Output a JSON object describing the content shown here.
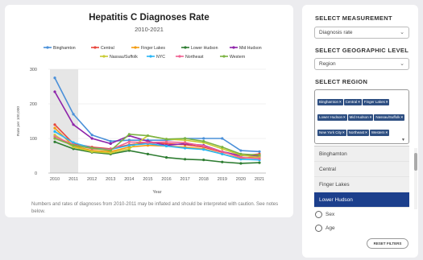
{
  "chart": {
    "title": "Hepatitis C Diagnoses Rate",
    "subtitle": "2010-2021",
    "note": "Numbers and rates of diagnoses from 2010-2011 may be inflated and should be interpreted with caution. See notes below."
  },
  "panel": {
    "measurement_title": "SELECT MEASUREMENT",
    "measurement_value": "Diagnosis rate",
    "geo_title": "SELECT GEOGRAPHIC LEVEL",
    "geo_value": "Region",
    "region_title": "SELECT REGION",
    "selected_regions": [
      "Binghamton",
      "Central",
      "Finger Lakes",
      "Lower Hudson",
      "Mid Hudson",
      "Nassau/Suffolk",
      "New York City",
      "Northeast",
      "Western"
    ],
    "dropdown_options": [
      "Binghamton",
      "Central",
      "Finger Lakes",
      "Lower Hudson"
    ],
    "dropdown_selected": "Lower Hudson",
    "radio_sex": "Sex",
    "radio_age": "Age",
    "reset_label": "RESET FILTERS"
  },
  "icons": {
    "chevron": "chevron-down-icon",
    "remove": "close-icon",
    "radio": "radio-icon"
  },
  "colors": {
    "highlight": "#1c3f8c",
    "tag": "#2e4f82",
    "shade": "#e6e6e6"
  },
  "chart_data": {
    "type": "line",
    "title": "Hepatitis C Diagnoses Rate",
    "subtitle": "2010-2021",
    "xlabel": "Year",
    "ylabel": "Rate per 100,000",
    "ylim": [
      0,
      300
    ],
    "yticks": [
      0,
      100,
      200,
      300
    ],
    "grid": true,
    "legend_position": "top",
    "shaded_range": [
      2010,
      2011
    ],
    "x": [
      2010,
      2011,
      2012,
      2013,
      2014,
      2015,
      2016,
      2017,
      2018,
      2019,
      2020,
      2021
    ],
    "series": [
      {
        "name": "Binghamton",
        "color": "#4a90d9",
        "values": [
          275,
          170,
          110,
          92,
          95,
          95,
          95,
          100,
          100,
          100,
          65,
          62
        ]
      },
      {
        "name": "Central",
        "color": "#e8463c",
        "values": [
          140,
          85,
          75,
          70,
          82,
          88,
          85,
          82,
          75,
          60,
          50,
          55
        ]
      },
      {
        "name": "Finger Lakes",
        "color": "#f39c12",
        "values": [
          130,
          78,
          65,
          62,
          75,
          80,
          78,
          75,
          70,
          55,
          42,
          48
        ]
      },
      {
        "name": "Lower Hudson",
        "color": "#2e7d32",
        "values": [
          90,
          70,
          60,
          55,
          65,
          55,
          45,
          40,
          38,
          32,
          28,
          30
        ]
      },
      {
        "name": "Mid Hudson",
        "color": "#8e24aa",
        "values": [
          235,
          140,
          100,
          85,
          108,
          92,
          80,
          85,
          80,
          62,
          50,
          50
        ]
      },
      {
        "name": "Nassau/Suffolk",
        "color": "#c9cc33",
        "values": [
          110,
          75,
          62,
          58,
          70,
          108,
          98,
          95,
          88,
          70,
          52,
          45
        ]
      },
      {
        "name": "NYC",
        "color": "#29b6f6",
        "values": [
          120,
          88,
          72,
          68,
          80,
          85,
          78,
          72,
          68,
          55,
          40,
          38
        ]
      },
      {
        "name": "Northeast",
        "color": "#f06292",
        "values": [
          105,
          82,
          70,
          68,
          90,
          88,
          90,
          88,
          78,
          62,
          45,
          42
        ]
      },
      {
        "name": "Western",
        "color": "#7cb342",
        "values": [
          100,
          80,
          72,
          65,
          112,
          108,
          98,
          100,
          92,
          75,
          55,
          52
        ]
      }
    ]
  }
}
